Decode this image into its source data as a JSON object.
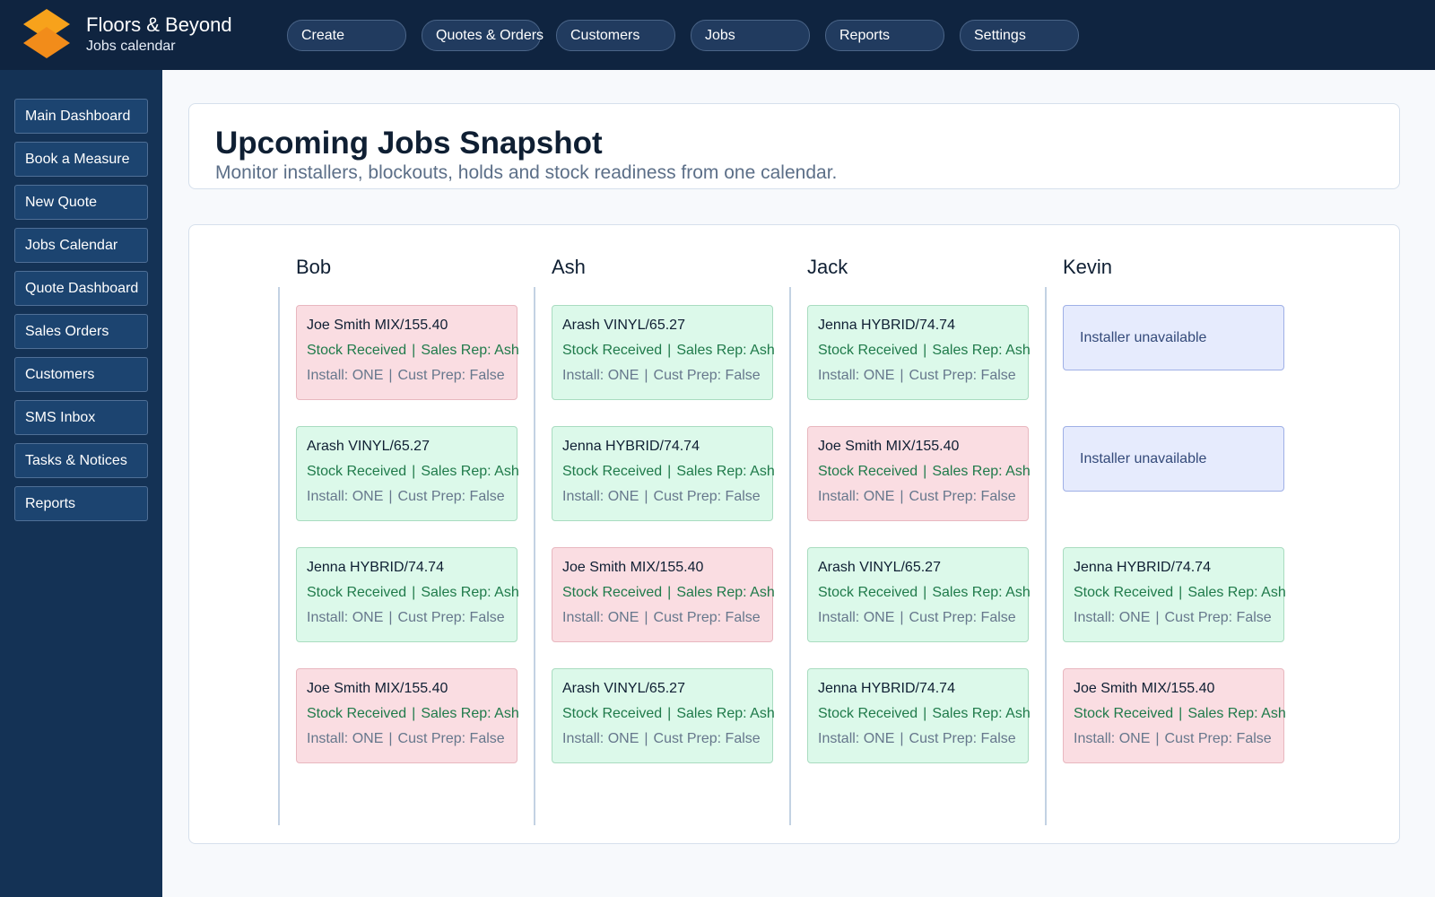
{
  "app": {
    "title": "Floors & Beyond",
    "subtitle": "Jobs calendar"
  },
  "colors": {
    "topbar": "#0f2440",
    "sidebar": "#143255",
    "logo": "#f7a21b",
    "stock_ready": "#dcf9ea",
    "stock_issue": "#fadde2",
    "blockout": "#e6ebfd"
  },
  "topnav": [
    "Create",
    "Quotes & Orders",
    "Customers",
    "Jobs",
    "Reports",
    "Settings"
  ],
  "sidebar": [
    "Main Dashboard",
    "Book a Measure",
    "New Quote",
    "Jobs Calendar",
    "Quote Dashboard",
    "Sales Orders",
    "Customers",
    "SMS Inbox",
    "Tasks & Notices",
    "Reports"
  ],
  "header": {
    "title": "Upcoming Jobs Snapshot",
    "subtitle": "Monitor installers, blockouts, holds and stock readiness from one calendar."
  },
  "labels": {
    "separator": "|",
    "blockout": "Installer unavailable"
  },
  "calendar": {
    "installers": [
      {
        "name": "Bob",
        "slots": [
          {
            "kind": "job",
            "tone": "red",
            "title": "Joe Smith MIX/155.40",
            "stock": "Stock Received",
            "rep": "Sales Rep: Ash",
            "install": "Install: ONE",
            "prep": "Cust Prep: False"
          },
          {
            "kind": "job",
            "tone": "green",
            "title": "Arash VINYL/65.27",
            "stock": "Stock Received",
            "rep": "Sales Rep: Ash",
            "install": "Install: ONE",
            "prep": "Cust Prep: False"
          },
          {
            "kind": "job",
            "tone": "green",
            "title": "Jenna HYBRID/74.74",
            "stock": "Stock Received",
            "rep": "Sales Rep: Ash",
            "install": "Install: ONE",
            "prep": "Cust Prep: False"
          },
          {
            "kind": "job",
            "tone": "red",
            "title": "Joe Smith MIX/155.40",
            "stock": "Stock Received",
            "rep": "Sales Rep: Ash",
            "install": "Install: ONE",
            "prep": "Cust Prep: False"
          }
        ]
      },
      {
        "name": "Ash",
        "slots": [
          {
            "kind": "job",
            "tone": "green",
            "title": "Arash VINYL/65.27",
            "stock": "Stock Received",
            "rep": "Sales Rep: Ash",
            "install": "Install: ONE",
            "prep": "Cust Prep: False"
          },
          {
            "kind": "job",
            "tone": "green",
            "title": "Jenna HYBRID/74.74",
            "stock": "Stock Received",
            "rep": "Sales Rep: Ash",
            "install": "Install: ONE",
            "prep": "Cust Prep: False"
          },
          {
            "kind": "job",
            "tone": "red",
            "title": "Joe Smith MIX/155.40",
            "stock": "Stock Received",
            "rep": "Sales Rep: Ash",
            "install": "Install: ONE",
            "prep": "Cust Prep: False"
          },
          {
            "kind": "job",
            "tone": "green",
            "title": "Arash VINYL/65.27",
            "stock": "Stock Received",
            "rep": "Sales Rep: Ash",
            "install": "Install: ONE",
            "prep": "Cust Prep: False"
          }
        ]
      },
      {
        "name": "Jack",
        "slots": [
          {
            "kind": "job",
            "tone": "green",
            "title": "Jenna HYBRID/74.74",
            "stock": "Stock Received",
            "rep": "Sales Rep: Ash",
            "install": "Install: ONE",
            "prep": "Cust Prep: False"
          },
          {
            "kind": "job",
            "tone": "red",
            "title": "Joe Smith MIX/155.40",
            "stock": "Stock Received",
            "rep": "Sales Rep: Ash",
            "install": "Install: ONE",
            "prep": "Cust Prep: False"
          },
          {
            "kind": "job",
            "tone": "green",
            "title": "Arash VINYL/65.27",
            "stock": "Stock Received",
            "rep": "Sales Rep: Ash",
            "install": "Install: ONE",
            "prep": "Cust Prep: False"
          },
          {
            "kind": "job",
            "tone": "green",
            "title": "Jenna HYBRID/74.74",
            "stock": "Stock Received",
            "rep": "Sales Rep: Ash",
            "install": "Install: ONE",
            "prep": "Cust Prep: False"
          }
        ]
      },
      {
        "name": "Kevin",
        "slots": [
          {
            "kind": "blockout"
          },
          {
            "kind": "blockout"
          },
          {
            "kind": "job",
            "tone": "green",
            "title": "Jenna HYBRID/74.74",
            "stock": "Stock Received",
            "rep": "Sales Rep: Ash",
            "install": "Install: ONE",
            "prep": "Cust Prep: False"
          },
          {
            "kind": "job",
            "tone": "red",
            "title": "Joe Smith MIX/155.40",
            "stock": "Stock Received",
            "rep": "Sales Rep: Ash",
            "install": "Install: ONE",
            "prep": "Cust Prep: False"
          }
        ]
      }
    ]
  }
}
